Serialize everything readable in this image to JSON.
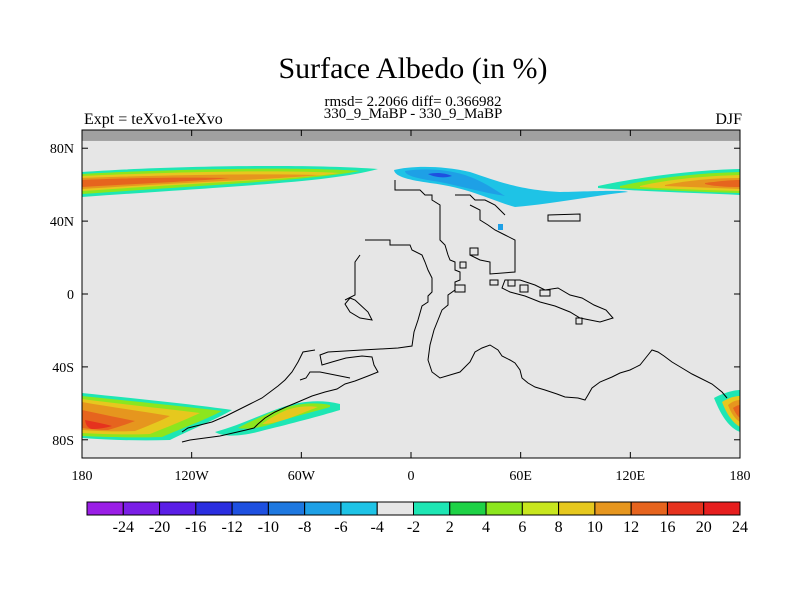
{
  "chart_data": {
    "type": "heatmap",
    "title": "Surface Albedo (in %)",
    "stats": "rmsd= 2.2066 diff= 0.366982",
    "subtitle": "330_9_MaBP - 330_9_MaBP",
    "left_label": "Expt = teXvo1-teXvo",
    "right_label": "DJF",
    "projection": "cylindrical equidistant",
    "xlim": [
      -180,
      180
    ],
    "ylim": [
      -90,
      90
    ],
    "x_ticks": [
      {
        "value": -180,
        "label": "180"
      },
      {
        "value": -120,
        "label": "120W"
      },
      {
        "value": -60,
        "label": "60W"
      },
      {
        "value": 0,
        "label": "0"
      },
      {
        "value": 60,
        "label": "60E"
      },
      {
        "value": 120,
        "label": "120E"
      },
      {
        "value": 180,
        "label": "180"
      }
    ],
    "y_ticks": [
      {
        "value": 80,
        "label": "80N"
      },
      {
        "value": 40,
        "label": "40N"
      },
      {
        "value": 0,
        "label": "0"
      },
      {
        "value": -40,
        "label": "40S"
      },
      {
        "value": -80,
        "label": "80S"
      }
    ],
    "missing_band": {
      "lat_from": 84,
      "lat_to": 90,
      "color": "#a0a0a0"
    },
    "background_color": "#e6e6e6",
    "colorbar": {
      "labels": [
        "-24",
        "-20",
        "-16",
        "-12",
        "-10",
        "-8",
        "-6",
        "-4",
        "-2",
        "2",
        "4",
        "6",
        "8",
        "10",
        "12",
        "16",
        "20",
        "24"
      ],
      "colors": [
        "#9a1ee6",
        "#7a1ee6",
        "#5a1ee6",
        "#2a2ee0",
        "#1e50e0",
        "#1e78e0",
        "#1ea0e6",
        "#1ec3e6",
        "#e6e6e6",
        "#1ee6b4",
        "#1ed246",
        "#8ce61e",
        "#c8e61e",
        "#e6c81e",
        "#e6961e",
        "#e6641e",
        "#e6321e",
        "#e61e1e"
      ]
    },
    "anomaly_regions": [
      {
        "name": "NH high-latitude band (west)",
        "lon": [
          -180,
          -5
        ],
        "lat": [
          55,
          68
        ],
        "range": [
          2,
          20
        ]
      },
      {
        "name": "NH high-latitude band (east)",
        "lon": [
          105,
          180
        ],
        "lat": [
          54,
          66
        ],
        "range": [
          2,
          20
        ]
      },
      {
        "name": "NH negative band",
        "lon": [
          -8,
          120
        ],
        "lat": [
          50,
          68
        ],
        "range": [
          -10,
          -2
        ]
      },
      {
        "name": "SH band (far west)",
        "lon": [
          -180,
          -145
        ],
        "lat": [
          -78,
          -53
        ],
        "range": [
          2,
          24
        ]
      },
      {
        "name": "SH band (east)",
        "lon": [
          165,
          180
        ],
        "lat": [
          -73,
          -53
        ],
        "range": [
          2,
          20
        ]
      },
      {
        "name": "SH patch",
        "lon": [
          -105,
          -35
        ],
        "lat": [
          -79,
          -57
        ],
        "range": [
          2,
          8
        ]
      }
    ]
  }
}
